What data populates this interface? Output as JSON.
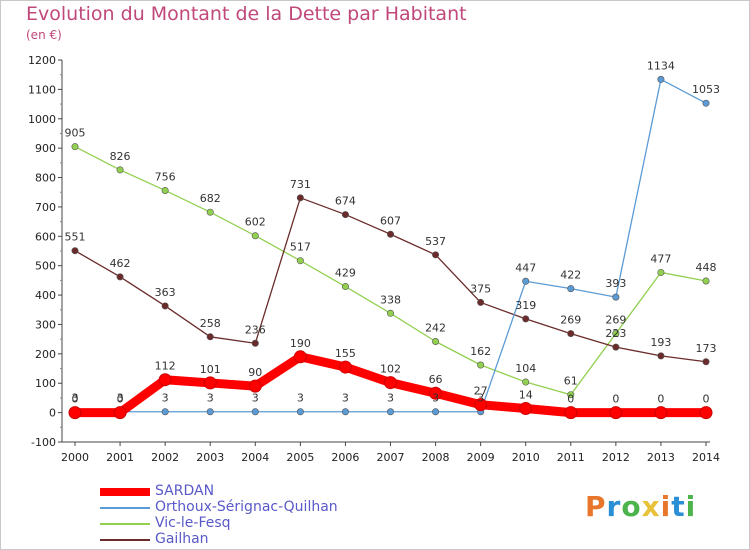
{
  "header": {
    "title": "Evolution du Montant de la Dette par Habitant",
    "subtitle": "(en €)"
  },
  "logo": {
    "text": "Proxiti",
    "colors": [
      "#e8762b",
      "#2b8fd6",
      "#4db34d",
      "#e8c23a",
      "#e8762b",
      "#2b8fd6",
      "#4db34d"
    ]
  },
  "chart_data": {
    "type": "line",
    "title": "Evolution du Montant de la Dette par Habitant",
    "subtitle": "(en €)",
    "x": [
      2000,
      2001,
      2002,
      2003,
      2004,
      2005,
      2006,
      2007,
      2008,
      2009,
      2010,
      2011,
      2012,
      2013,
      2014
    ],
    "ylim": [
      -100,
      1200
    ],
    "yticks": [
      -100,
      0,
      100,
      200,
      300,
      400,
      500,
      600,
      700,
      800,
      900,
      1000,
      1100,
      1200
    ],
    "grid": false,
    "legend_position": "bottom-left",
    "series": [
      {
        "name": "SARDAN",
        "color": "#ff0000",
        "values": [
          0,
          0,
          112,
          101,
          90,
          190,
          155,
          102,
          66,
          27,
          14,
          0,
          0,
          0,
          0
        ],
        "labels": [
          "0",
          "0",
          "112",
          "101",
          "90",
          "190",
          "155",
          "102",
          "66",
          "27",
          "14",
          "0",
          "0",
          "0",
          "0"
        ]
      },
      {
        "name": "Orthoux-Sérignac-Quilhan",
        "color": "#5b9bd5",
        "values": [
          3,
          3,
          3,
          3,
          3,
          3,
          3,
          3,
          3,
          3,
          447,
          422,
          393,
          1134,
          1053
        ],
        "labels": [
          "3",
          "3",
          "3",
          "3",
          "3",
          "3",
          "3",
          "3",
          "3",
          "3",
          "447",
          "422",
          "393",
          "1134",
          "1053"
        ]
      },
      {
        "name": "Vic-le-Fesq",
        "color": "#92d050",
        "values": [
          905,
          826,
          756,
          682,
          602,
          517,
          429,
          338,
          242,
          162,
          104,
          61,
          269,
          477,
          448
        ],
        "labels": [
          "905",
          "826",
          "756",
          "682",
          "602",
          "517",
          "429",
          "338",
          "242",
          "162",
          "104",
          "61",
          "269",
          "477",
          "448"
        ]
      },
      {
        "name": "Gailhan",
        "color": "#6b2b2b",
        "values": [
          551,
          462,
          363,
          258,
          236,
          731,
          674,
          607,
          537,
          375,
          319,
          269,
          223,
          193,
          173
        ],
        "labels": [
          "551",
          "462",
          "363",
          "258",
          "236",
          "731",
          "674",
          "607",
          "537",
          "375",
          "319",
          "269",
          "223",
          "193",
          "173"
        ]
      }
    ]
  }
}
